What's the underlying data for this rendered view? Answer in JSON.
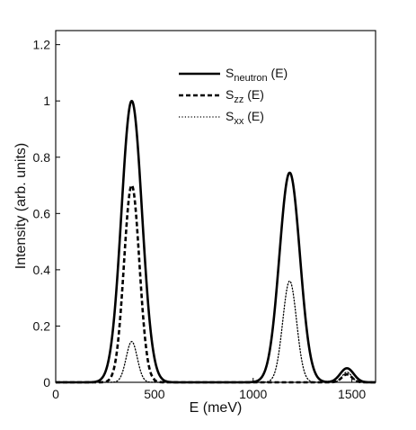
{
  "chart_data": {
    "type": "line",
    "title": "",
    "xlabel": "E (meV)",
    "ylabel": "Intensity (arb. units)",
    "xlim": [
      0,
      1620
    ],
    "ylim": [
      0,
      1.25
    ],
    "xticks": [
      0,
      500,
      1000,
      1500
    ],
    "yticks": [
      0,
      0.2,
      0.4,
      0.6,
      0.8,
      1,
      1.2
    ],
    "xtick_labels": [
      "0",
      "500",
      "1000",
      "1500"
    ],
    "ytick_labels": [
      "0",
      "0.2",
      "0.4",
      "0.6",
      "0.8",
      "1",
      "1.2"
    ],
    "grid": false,
    "legend_position": "top-center",
    "series": [
      {
        "name": "S_neutron (E)",
        "legend_main": "S",
        "legend_sub": "neutron",
        "legend_tail": " (E)",
        "style": "solid",
        "color": "#000000",
        "peaks": [
          {
            "center": 385,
            "height": 1.0,
            "sigma": 52
          },
          {
            "center": 1185,
            "height": 0.745,
            "sigma": 52
          },
          {
            "center": 1475,
            "height": 0.05,
            "sigma": 34
          }
        ]
      },
      {
        "name": "S_zz (E)",
        "legend_main": "S",
        "legend_sub": "zz",
        "legend_tail": " (E)",
        "style": "dashed",
        "color": "#000000",
        "peaks": [
          {
            "center": 385,
            "height": 0.7,
            "sigma": 39
          },
          {
            "center": 1185,
            "height": 0.0,
            "sigma": 40
          },
          {
            "center": 1475,
            "height": 0.028,
            "sigma": 26
          }
        ]
      },
      {
        "name": "S_xx (E)",
        "legend_main": "S",
        "legend_sub": "xx",
        "legend_tail": " (E)",
        "style": "dotted",
        "color": "#000000",
        "peaks": [
          {
            "center": 385,
            "height": 0.145,
            "sigma": 28
          },
          {
            "center": 1185,
            "height": 0.36,
            "sigma": 35
          },
          {
            "center": 1475,
            "height": 0.036,
            "sigma": 24
          }
        ]
      }
    ]
  }
}
